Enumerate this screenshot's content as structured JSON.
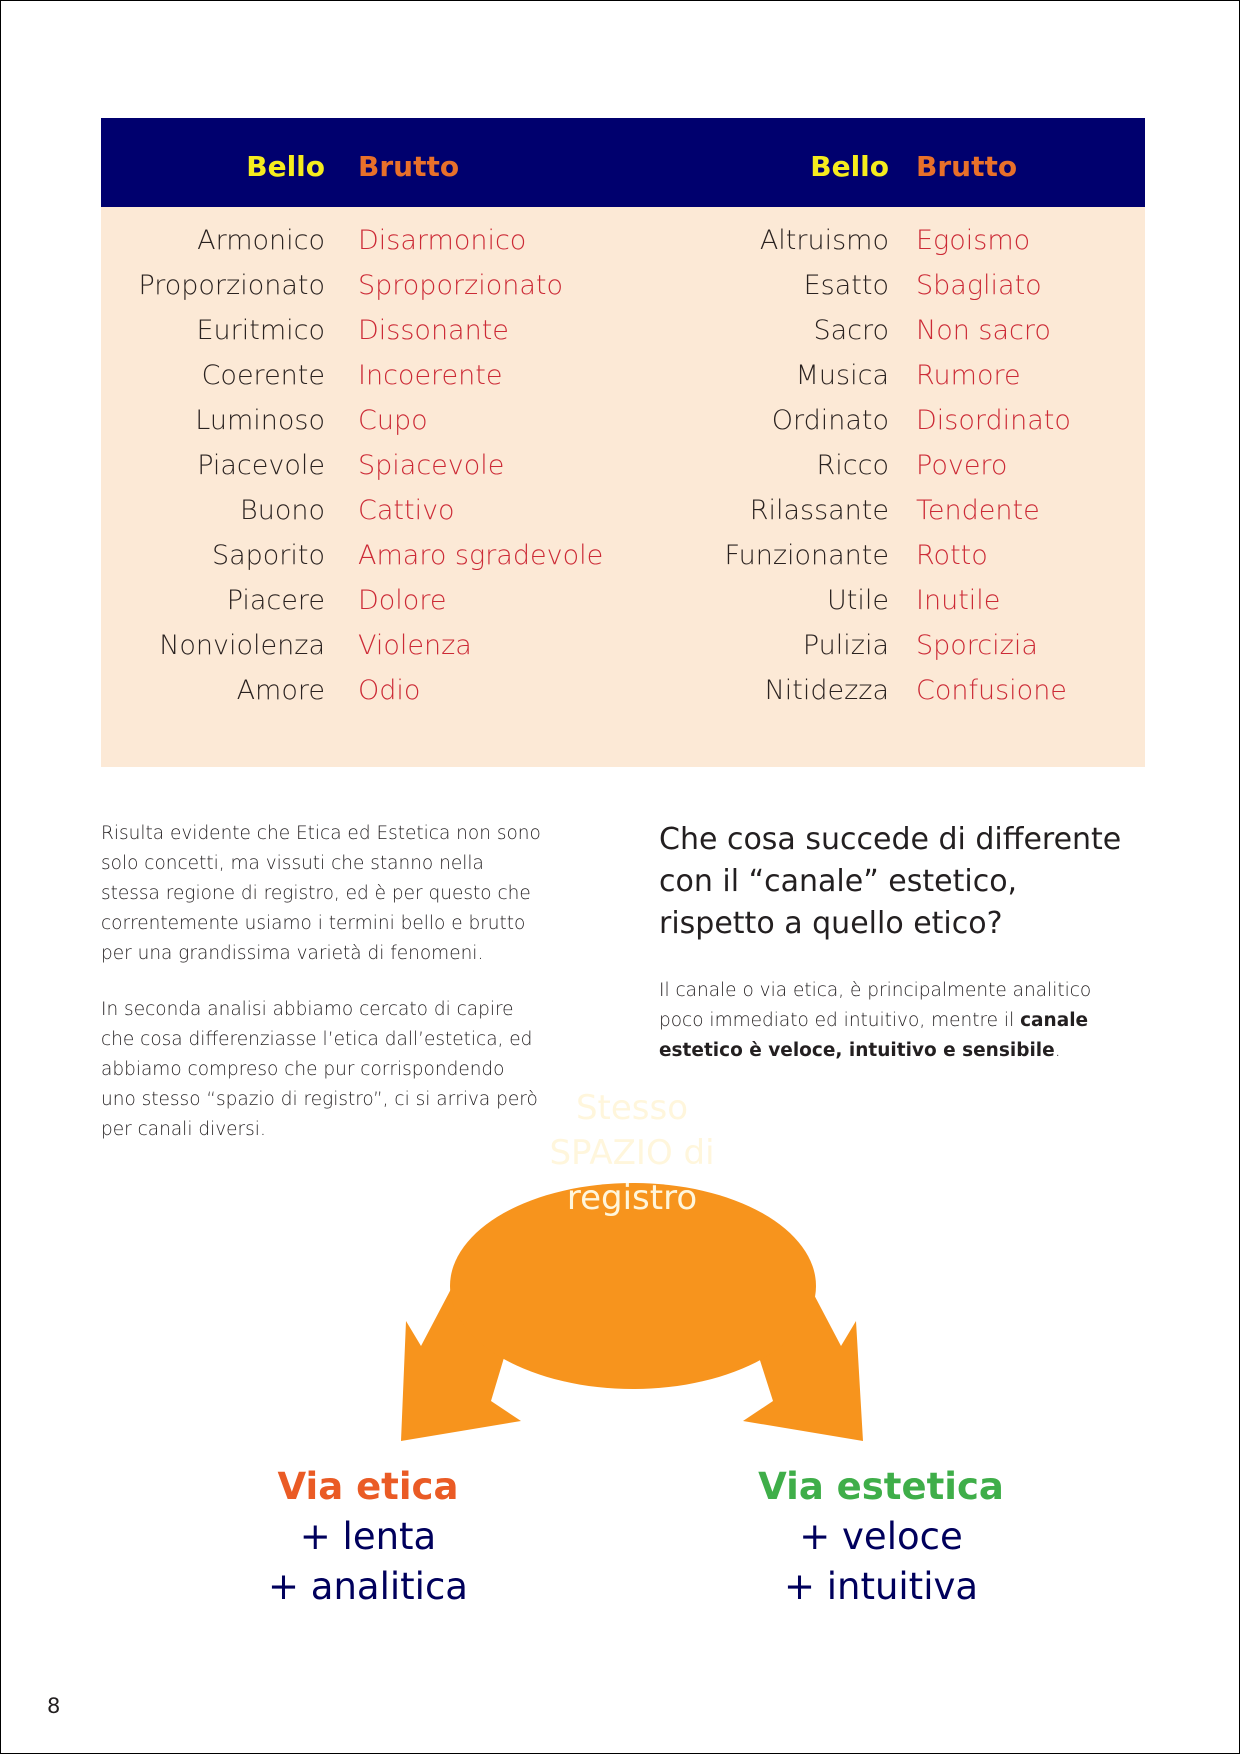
{
  "table": {
    "header": {
      "bello": "Bello",
      "brutto": "Brutto"
    },
    "left": [
      [
        "Armonico",
        "Disarmonico"
      ],
      [
        "Proporzionato",
        "Sproporzionato"
      ],
      [
        "Euritmico",
        "Dissonante"
      ],
      [
        "Coerente",
        "Incoerente"
      ],
      [
        "Luminoso",
        "Cupo"
      ],
      [
        "Piacevole",
        "Spiacevole"
      ],
      [
        "Buono",
        "Cattivo"
      ],
      [
        "Saporito",
        "Amaro sgradevole"
      ],
      [
        "Piacere",
        "Dolore"
      ],
      [
        "Nonviolenza",
        "Violenza"
      ],
      [
        "Amore",
        "Odio"
      ]
    ],
    "right": [
      [
        "Altruismo",
        "Egoismo"
      ],
      [
        "Esatto",
        "Sbagliato"
      ],
      [
        "Sacro",
        "Non sacro"
      ],
      [
        "Musica",
        "Rumore"
      ],
      [
        "Ordinato",
        "Disordinato"
      ],
      [
        "Ricco",
        "Povero"
      ],
      [
        "Rilassante",
        "Tendente"
      ],
      [
        "Funzionante",
        "Rotto"
      ],
      [
        "Utile",
        "Inutile"
      ],
      [
        "Pulizia",
        "Sporcizia"
      ],
      [
        "Nitidezza",
        "Confusione"
      ]
    ]
  },
  "left_text": {
    "p1": "Risulta evidente che Etica ed Estetica non sono solo concetti, ma vissuti che stanno nella stessa regione di registro, ed è per questo che correntemente usiamo i termini bello e brutto per una grandissima varietà di fenomeni.",
    "p2": "In seconda analisi abbiamo cercato di capire che cosa differenziasse l’etica dall’estetica, ed abbiamo compreso che pur corrispondendo uno stesso “spazio di registro”, ci si arriva però per canali diversi."
  },
  "right_text": {
    "heading": "Che cosa succede di differente con il “canale” estetico, rispetto a quello etico?",
    "p_start": "Il canale o via etica, è principalmente analitico poco immediato ed intuitivo, mentre il ",
    "p_bold": "canale estetico è veloce, intuitivo e sensibile",
    "p_end": "."
  },
  "diagram": {
    "center": [
      "Stesso",
      "SPAZIO di",
      "registro"
    ],
    "left": {
      "title": "Via etica",
      "lines": [
        "+ lenta",
        "+ analitica"
      ]
    },
    "right": {
      "title": "Via estetica",
      "lines": [
        "+ veloce",
        "+ intuitiva"
      ]
    },
    "colors": {
      "ellipse": "#f7941d",
      "etica": "#ea5b25",
      "estetica": "#3fae49",
      "navy": "#00006e"
    }
  },
  "page_number": "8"
}
